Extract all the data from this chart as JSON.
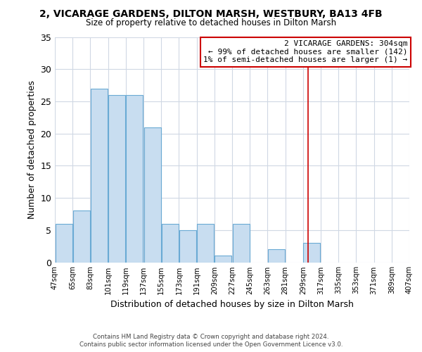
{
  "title": "2, VICARAGE GARDENS, DILTON MARSH, WESTBURY, BA13 4FB",
  "subtitle": "Size of property relative to detached houses in Dilton Marsh",
  "xlabel": "Distribution of detached houses by size in Dilton Marsh",
  "ylabel": "Number of detached properties",
  "bar_color": "#c8ddf0",
  "bar_edge_color": "#6aaad4",
  "background_color": "#ffffff",
  "grid_color": "#d0d8e4",
  "bins": [
    47,
    65,
    83,
    101,
    119,
    137,
    155,
    173,
    191,
    209,
    227,
    245,
    263,
    281,
    299,
    317,
    335,
    353,
    371,
    389,
    407
  ],
  "counts": [
    6,
    8,
    27,
    26,
    26,
    21,
    6,
    5,
    6,
    1,
    6,
    0,
    2,
    0,
    3,
    0,
    0,
    0,
    0,
    0
  ],
  "tick_labels": [
    "47sqm",
    "65sqm",
    "83sqm",
    "101sqm",
    "119sqm",
    "137sqm",
    "155sqm",
    "173sqm",
    "191sqm",
    "209sqm",
    "227sqm",
    "245sqm",
    "263sqm",
    "281sqm",
    "299sqm",
    "317sqm",
    "335sqm",
    "353sqm",
    "371sqm",
    "389sqm",
    "407sqm"
  ],
  "ylim": [
    0,
    35
  ],
  "yticks": [
    0,
    5,
    10,
    15,
    20,
    25,
    30,
    35
  ],
  "vline_x": 304,
  "vline_color": "#cc0000",
  "annotation_title": "2 VICARAGE GARDENS: 304sqm",
  "annotation_line1": "← 99% of detached houses are smaller (142)",
  "annotation_line2": "1% of semi-detached houses are larger (1) →",
  "annotation_box_color": "#ffffff",
  "annotation_box_edge": "#cc0000",
  "footer_line1": "Contains HM Land Registry data © Crown copyright and database right 2024.",
  "footer_line2": "Contains public sector information licensed under the Open Government Licence v3.0."
}
